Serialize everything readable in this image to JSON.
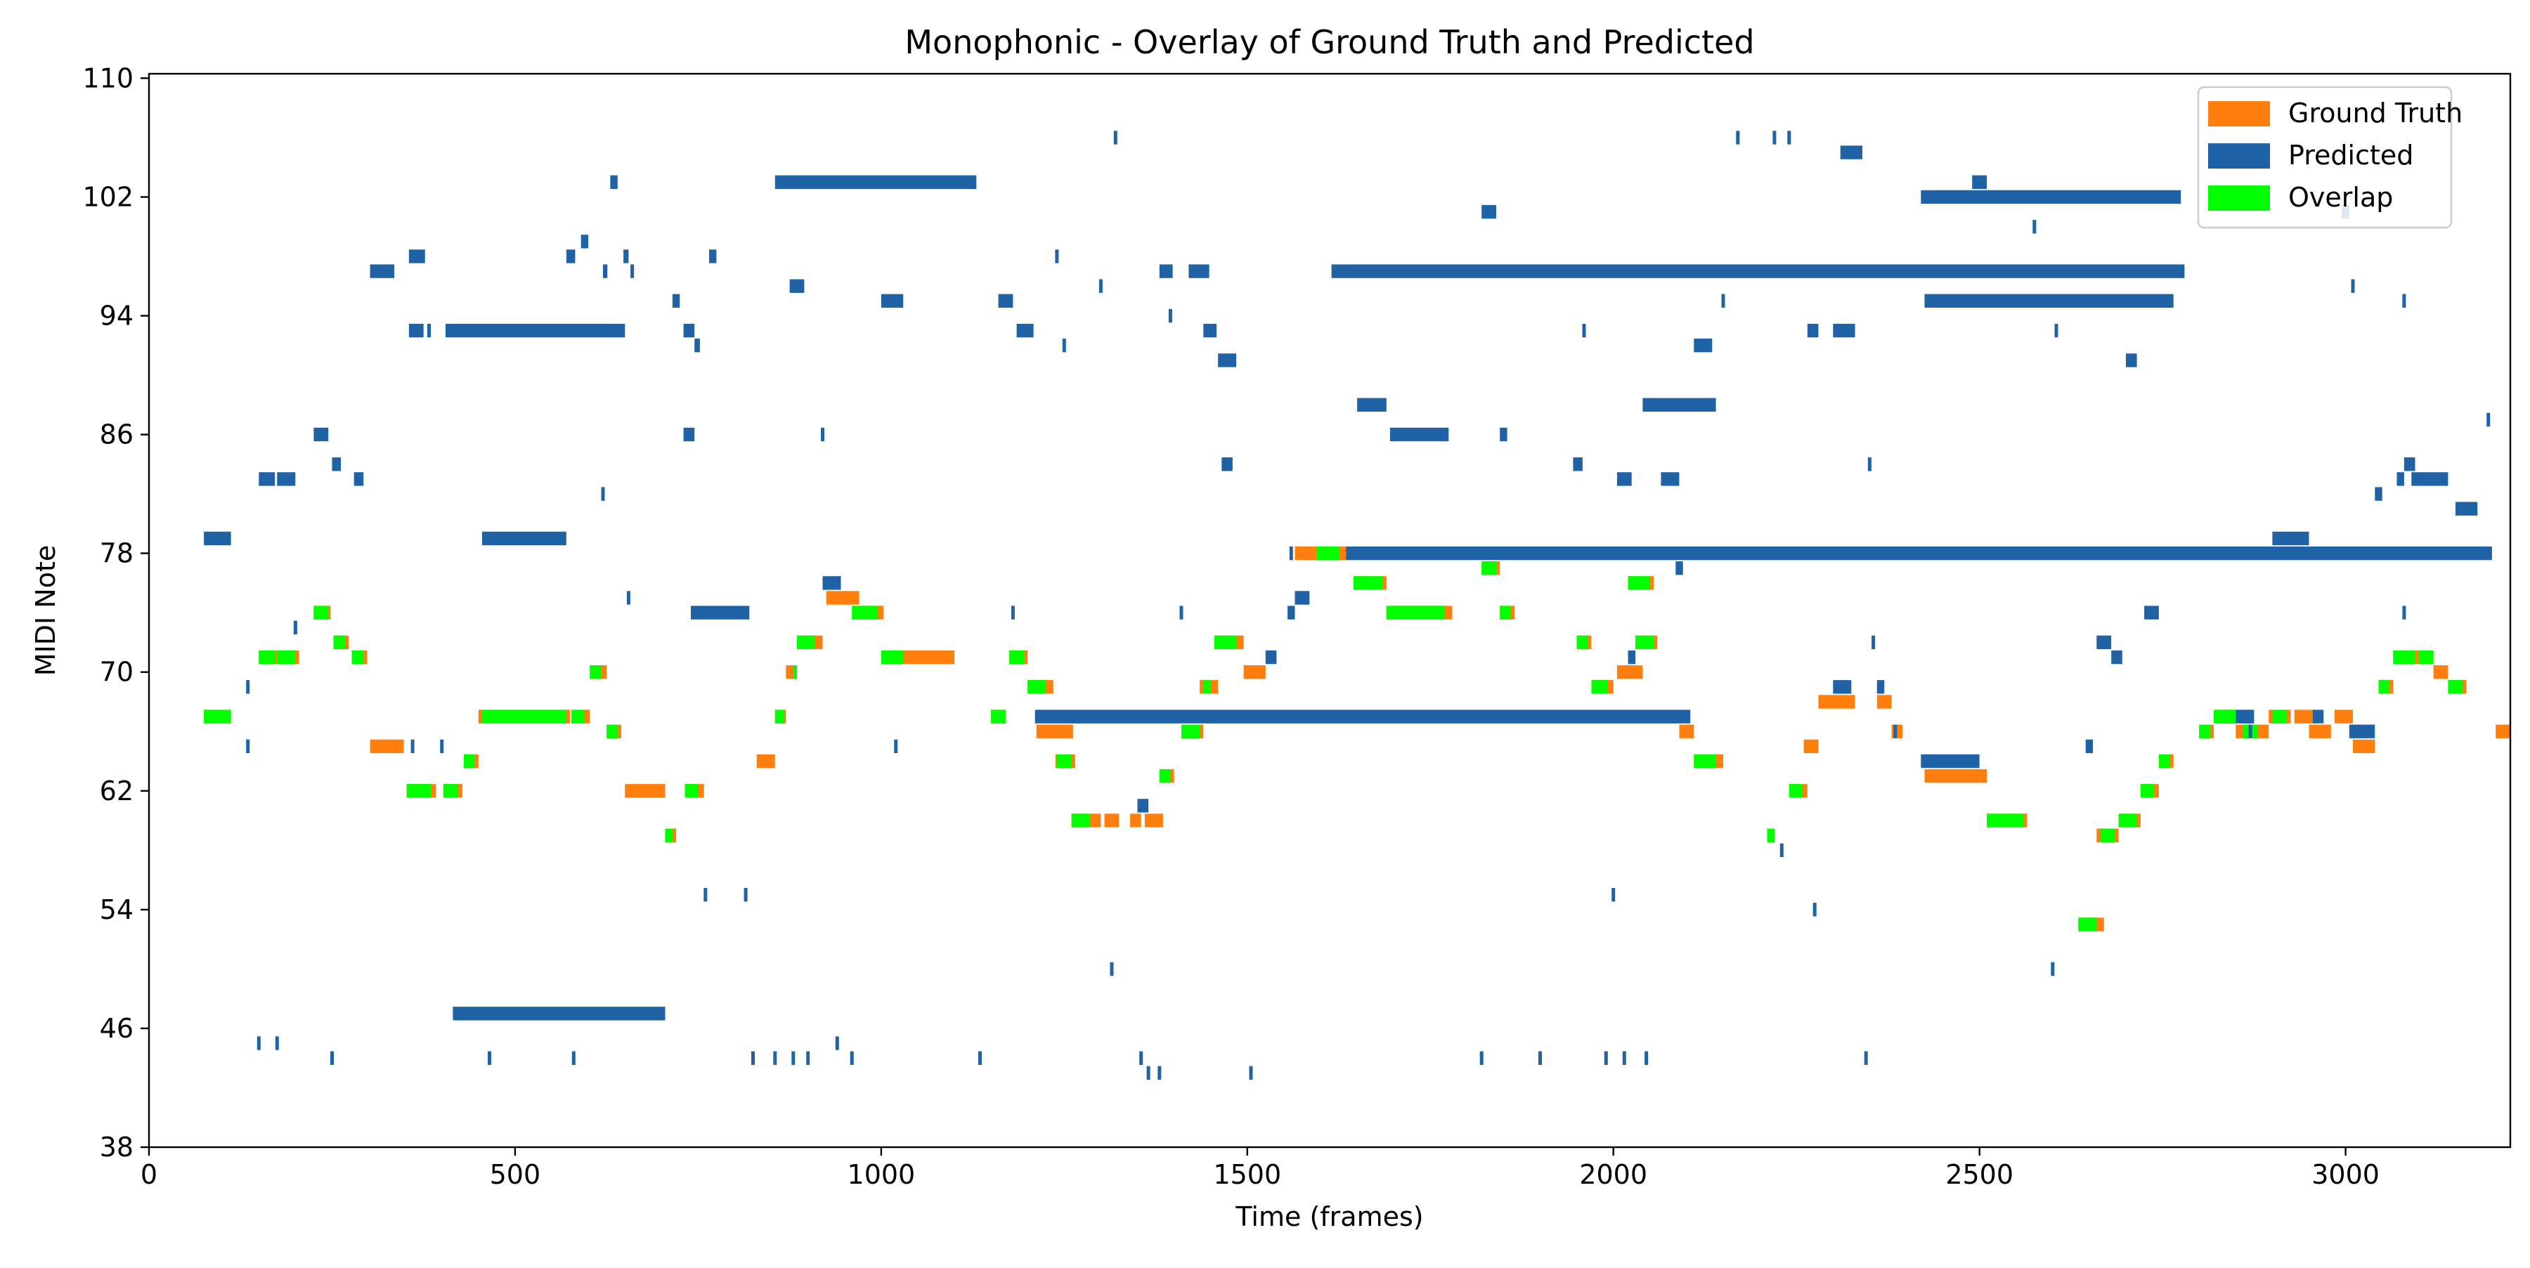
{
  "chart_data": {
    "type": "piano-roll",
    "title": "Monophonic - Overlay of Ground Truth and Predicted",
    "xlabel": "Time (frames)",
    "ylabel": "MIDI Note",
    "xlim": [
      0,
      3225
    ],
    "ylim": [
      38,
      110.3
    ],
    "xticks": [
      0,
      500,
      1000,
      1500,
      2000,
      2500,
      3000
    ],
    "yticks": [
      38,
      46,
      54,
      62,
      70,
      78,
      86,
      94,
      102,
      110
    ],
    "legend_position": "top-right",
    "grid": false,
    "colors": {
      "ground_truth": "#ff7f0e",
      "predicted": "#1f63a6",
      "overlap": "#00ff00"
    },
    "series": [
      {
        "name": "Ground Truth",
        "notes": [
          [
            75,
            112,
            67
          ],
          [
            150,
            175,
            71
          ],
          [
            175,
            205,
            71
          ],
          [
            225,
            248,
            74
          ],
          [
            252,
            273,
            72
          ],
          [
            277,
            298,
            71
          ],
          [
            302,
            348,
            65
          ],
          [
            352,
            392,
            62
          ],
          [
            402,
            428,
            62
          ],
          [
            430,
            450,
            64
          ],
          [
            450,
            575,
            67
          ],
          [
            577,
            602,
            67
          ],
          [
            602,
            625,
            70
          ],
          [
            625,
            645,
            66
          ],
          [
            650,
            705,
            62
          ],
          [
            705,
            720,
            59
          ],
          [
            732,
            758,
            62
          ],
          [
            830,
            855,
            64
          ],
          [
            855,
            870,
            67
          ],
          [
            870,
            885,
            70
          ],
          [
            885,
            920,
            72
          ],
          [
            925,
            970,
            75
          ],
          [
            965,
            1003,
            74
          ],
          [
            1000,
            1100,
            71
          ],
          [
            1150,
            1170,
            67
          ],
          [
            1175,
            1200,
            71
          ],
          [
            1200,
            1235,
            69
          ],
          [
            1212,
            1262,
            66
          ],
          [
            1238,
            1265,
            64
          ],
          [
            1260,
            1300,
            60
          ],
          [
            1305,
            1325,
            60
          ],
          [
            1340,
            1355,
            60
          ],
          [
            1360,
            1385,
            60
          ],
          [
            1380,
            1400,
            63
          ],
          [
            1410,
            1440,
            66
          ],
          [
            1435,
            1460,
            69
          ],
          [
            1455,
            1495,
            72
          ],
          [
            1495,
            1525,
            70
          ],
          [
            1565,
            1595,
            78
          ],
          [
            1595,
            1635,
            78
          ],
          [
            1645,
            1690,
            76
          ],
          [
            1690,
            1780,
            74
          ],
          [
            1820,
            1845,
            77
          ],
          [
            1845,
            1865,
            74
          ],
          [
            1950,
            1970,
            72
          ],
          [
            1970,
            2000,
            69
          ],
          [
            2005,
            2040,
            70
          ],
          [
            2020,
            2055,
            76
          ],
          [
            2030,
            2060,
            72
          ],
          [
            2090,
            2110,
            66
          ],
          [
            2110,
            2150,
            64
          ],
          [
            2210,
            2220,
            59
          ],
          [
            2240,
            2265,
            62
          ],
          [
            2260,
            2280,
            65
          ],
          [
            2280,
            2330,
            68
          ],
          [
            2360,
            2380,
            68
          ],
          [
            2380,
            2395,
            66
          ],
          [
            2425,
            2510,
            63
          ],
          [
            2510,
            2565,
            60
          ],
          [
            2635,
            2670,
            53
          ],
          [
            2660,
            2690,
            59
          ],
          [
            2690,
            2720,
            60
          ],
          [
            2720,
            2745,
            62
          ],
          [
            2745,
            2765,
            64
          ],
          [
            2800,
            2820,
            66
          ],
          [
            2820,
            2850,
            67
          ],
          [
            2850,
            2895,
            66
          ],
          [
            2895,
            2925,
            67
          ],
          [
            2930,
            2955,
            67
          ],
          [
            2950,
            2980,
            66
          ],
          [
            2985,
            3010,
            67
          ],
          [
            3010,
            3040,
            65
          ],
          [
            3045,
            3065,
            69
          ],
          [
            3065,
            3100,
            71
          ],
          [
            3100,
            3120,
            71
          ],
          [
            3120,
            3140,
            70
          ],
          [
            3140,
            3165,
            69
          ],
          [
            3205,
            3225,
            66
          ]
        ]
      },
      {
        "name": "Predicted",
        "notes": [
          [
            75,
            112,
            79
          ],
          [
            150,
            172,
            83
          ],
          [
            175,
            200,
            83
          ],
          [
            225,
            245,
            86
          ],
          [
            250,
            262,
            84
          ],
          [
            280,
            293,
            83
          ],
          [
            302,
            335,
            97
          ],
          [
            355,
            377,
            98
          ],
          [
            355,
            375,
            93
          ],
          [
            380,
            385,
            93
          ],
          [
            405,
            650,
            93
          ],
          [
            415,
            705,
            47
          ],
          [
            455,
            570,
            79
          ],
          [
            570,
            582,
            98
          ],
          [
            590,
            600,
            99
          ],
          [
            620,
            626,
            97
          ],
          [
            630,
            640,
            103
          ],
          [
            648,
            655,
            98
          ],
          [
            715,
            725,
            95
          ],
          [
            730,
            745,
            93
          ],
          [
            730,
            745,
            86
          ],
          [
            740,
            820,
            74
          ],
          [
            745,
            752,
            92
          ],
          [
            765,
            775,
            98
          ],
          [
            855,
            1130,
            103
          ],
          [
            875,
            895,
            96
          ],
          [
            920,
            945,
            76
          ],
          [
            1000,
            1030,
            95
          ],
          [
            1160,
            1180,
            95
          ],
          [
            1185,
            1208,
            93
          ],
          [
            1210,
            2105,
            67
          ],
          [
            1350,
            1365,
            61
          ],
          [
            1380,
            1398,
            97
          ],
          [
            1420,
            1448,
            97
          ],
          [
            1440,
            1458,
            93
          ],
          [
            1460,
            1485,
            91
          ],
          [
            1465,
            1480,
            84
          ],
          [
            1525,
            1540,
            71
          ],
          [
            1555,
            1565,
            74
          ],
          [
            1565,
            1585,
            75
          ],
          [
            1615,
            2780,
            97
          ],
          [
            1635,
            3200,
            78
          ],
          [
            1650,
            1690,
            88
          ],
          [
            1695,
            1775,
            86
          ],
          [
            1820,
            1840,
            101
          ],
          [
            1845,
            1855,
            86
          ],
          [
            1945,
            1958,
            84
          ],
          [
            2005,
            2025,
            83
          ],
          [
            2020,
            2030,
            71
          ],
          [
            2040,
            2140,
            88
          ],
          [
            2065,
            2090,
            83
          ],
          [
            2085,
            2095,
            77
          ],
          [
            2110,
            2135,
            92
          ],
          [
            2265,
            2280,
            93
          ],
          [
            2300,
            2325,
            69
          ],
          [
            2300,
            2330,
            93
          ],
          [
            2310,
            2340,
            105
          ],
          [
            2360,
            2370,
            69
          ],
          [
            2420,
            2500,
            64
          ],
          [
            2420,
            2775,
            102
          ],
          [
            2425,
            2765,
            95
          ],
          [
            2490,
            2510,
            103
          ],
          [
            2645,
            2655,
            65
          ],
          [
            2660,
            2680,
            72
          ],
          [
            2680,
            2695,
            71
          ],
          [
            2700,
            2715,
            91
          ],
          [
            2725,
            2745,
            74
          ],
          [
            2830,
            2875,
            67
          ],
          [
            2860,
            2870,
            67
          ],
          [
            2900,
            2950,
            79
          ],
          [
            2955,
            2970,
            67
          ],
          [
            2995,
            3005,
            101
          ],
          [
            3005,
            3040,
            66
          ],
          [
            3040,
            3050,
            82
          ],
          [
            3070,
            3080,
            83
          ],
          [
            3080,
            3095,
            84
          ],
          [
            3090,
            3140,
            83
          ],
          [
            3150,
            3180,
            81
          ]
        ]
      },
      {
        "name": "Overlap",
        "notes": [
          [
            75,
            112,
            67
          ],
          [
            150,
            172,
            71
          ],
          [
            175,
            200,
            71
          ],
          [
            225,
            245,
            74
          ],
          [
            252,
            268,
            72
          ],
          [
            277,
            293,
            71
          ],
          [
            352,
            385,
            62
          ],
          [
            402,
            422,
            62
          ],
          [
            430,
            445,
            64
          ],
          [
            455,
            570,
            67
          ],
          [
            577,
            595,
            67
          ],
          [
            602,
            618,
            70
          ],
          [
            625,
            640,
            66
          ],
          [
            705,
            715,
            59
          ],
          [
            732,
            750,
            62
          ],
          [
            855,
            868,
            67
          ],
          [
            880,
            885,
            70
          ],
          [
            885,
            910,
            72
          ],
          [
            960,
            995,
            74
          ],
          [
            1000,
            1030,
            71
          ],
          [
            1150,
            1170,
            67
          ],
          [
            1175,
            1195,
            71
          ],
          [
            1200,
            1225,
            69
          ],
          [
            1240,
            1260,
            64
          ],
          [
            1260,
            1285,
            60
          ],
          [
            1380,
            1395,
            63
          ],
          [
            1410,
            1435,
            66
          ],
          [
            1440,
            1450,
            69
          ],
          [
            1455,
            1485,
            72
          ],
          [
            1595,
            1625,
            78
          ],
          [
            1645,
            1685,
            76
          ],
          [
            1690,
            1770,
            74
          ],
          [
            1820,
            1840,
            77
          ],
          [
            1845,
            1860,
            74
          ],
          [
            1950,
            1965,
            72
          ],
          [
            1970,
            1992,
            69
          ],
          [
            2020,
            2050,
            76
          ],
          [
            2030,
            2055,
            72
          ],
          [
            2110,
            2140,
            64
          ],
          [
            2210,
            2220,
            59
          ],
          [
            2240,
            2258,
            62
          ],
          [
            2510,
            2560,
            60
          ],
          [
            2635,
            2660,
            53
          ],
          [
            2665,
            2685,
            59
          ],
          [
            2690,
            2715,
            60
          ],
          [
            2720,
            2738,
            62
          ],
          [
            2745,
            2760,
            64
          ],
          [
            2800,
            2815,
            66
          ],
          [
            2820,
            2850,
            67
          ],
          [
            2860,
            2880,
            66
          ],
          [
            2900,
            2920,
            67
          ],
          [
            3045,
            3060,
            69
          ],
          [
            3065,
            3095,
            71
          ],
          [
            3100,
            3120,
            71
          ],
          [
            3140,
            3160,
            69
          ]
        ]
      }
    ],
    "ticks_predicted": [
      [
        135,
        65,
        69
      ],
      [
        150,
        45
      ],
      [
        175,
        45
      ],
      [
        200,
        73
      ],
      [
        250,
        44
      ],
      [
        360,
        65
      ],
      [
        400,
        65
      ],
      [
        465,
        44
      ],
      [
        580,
        44
      ],
      [
        620,
        82
      ],
      [
        655,
        75
      ],
      [
        660,
        97
      ],
      [
        750,
        92
      ],
      [
        760,
        55
      ],
      [
        815,
        55
      ],
      [
        825,
        44
      ],
      [
        855,
        44
      ],
      [
        880,
        44
      ],
      [
        900,
        44
      ],
      [
        920,
        86
      ],
      [
        940,
        45
      ],
      [
        960,
        44
      ],
      [
        1020,
        65
      ],
      [
        1135,
        44
      ],
      [
        1180,
        74
      ],
      [
        1240,
        98
      ],
      [
        1250,
        92
      ],
      [
        1300,
        96
      ],
      [
        1315,
        50
      ],
      [
        1320,
        106
      ],
      [
        1355,
        44
      ],
      [
        1365,
        43
      ],
      [
        1380,
        43
      ],
      [
        1395,
        94
      ],
      [
        1410,
        74
      ],
      [
        1505,
        43
      ],
      [
        1560,
        78
      ],
      [
        1820,
        44
      ],
      [
        1900,
        44
      ],
      [
        1960,
        93
      ],
      [
        1990,
        44
      ],
      [
        2000,
        55
      ],
      [
        2015,
        44
      ],
      [
        2045,
        44
      ],
      [
        2150,
        95
      ],
      [
        2170,
        106
      ],
      [
        2220,
        106
      ],
      [
        2230,
        58
      ],
      [
        2240,
        106
      ],
      [
        2275,
        54
      ],
      [
        2345,
        44
      ],
      [
        2350,
        84
      ],
      [
        2355,
        72
      ],
      [
        2385,
        66
      ],
      [
        2575,
        100
      ],
      [
        2600,
        50
      ],
      [
        2605,
        93
      ],
      [
        2870,
        66
      ],
      [
        3010,
        96
      ],
      [
        3080,
        74
      ],
      [
        3080,
        95
      ],
      [
        3195,
        87
      ]
    ]
  }
}
